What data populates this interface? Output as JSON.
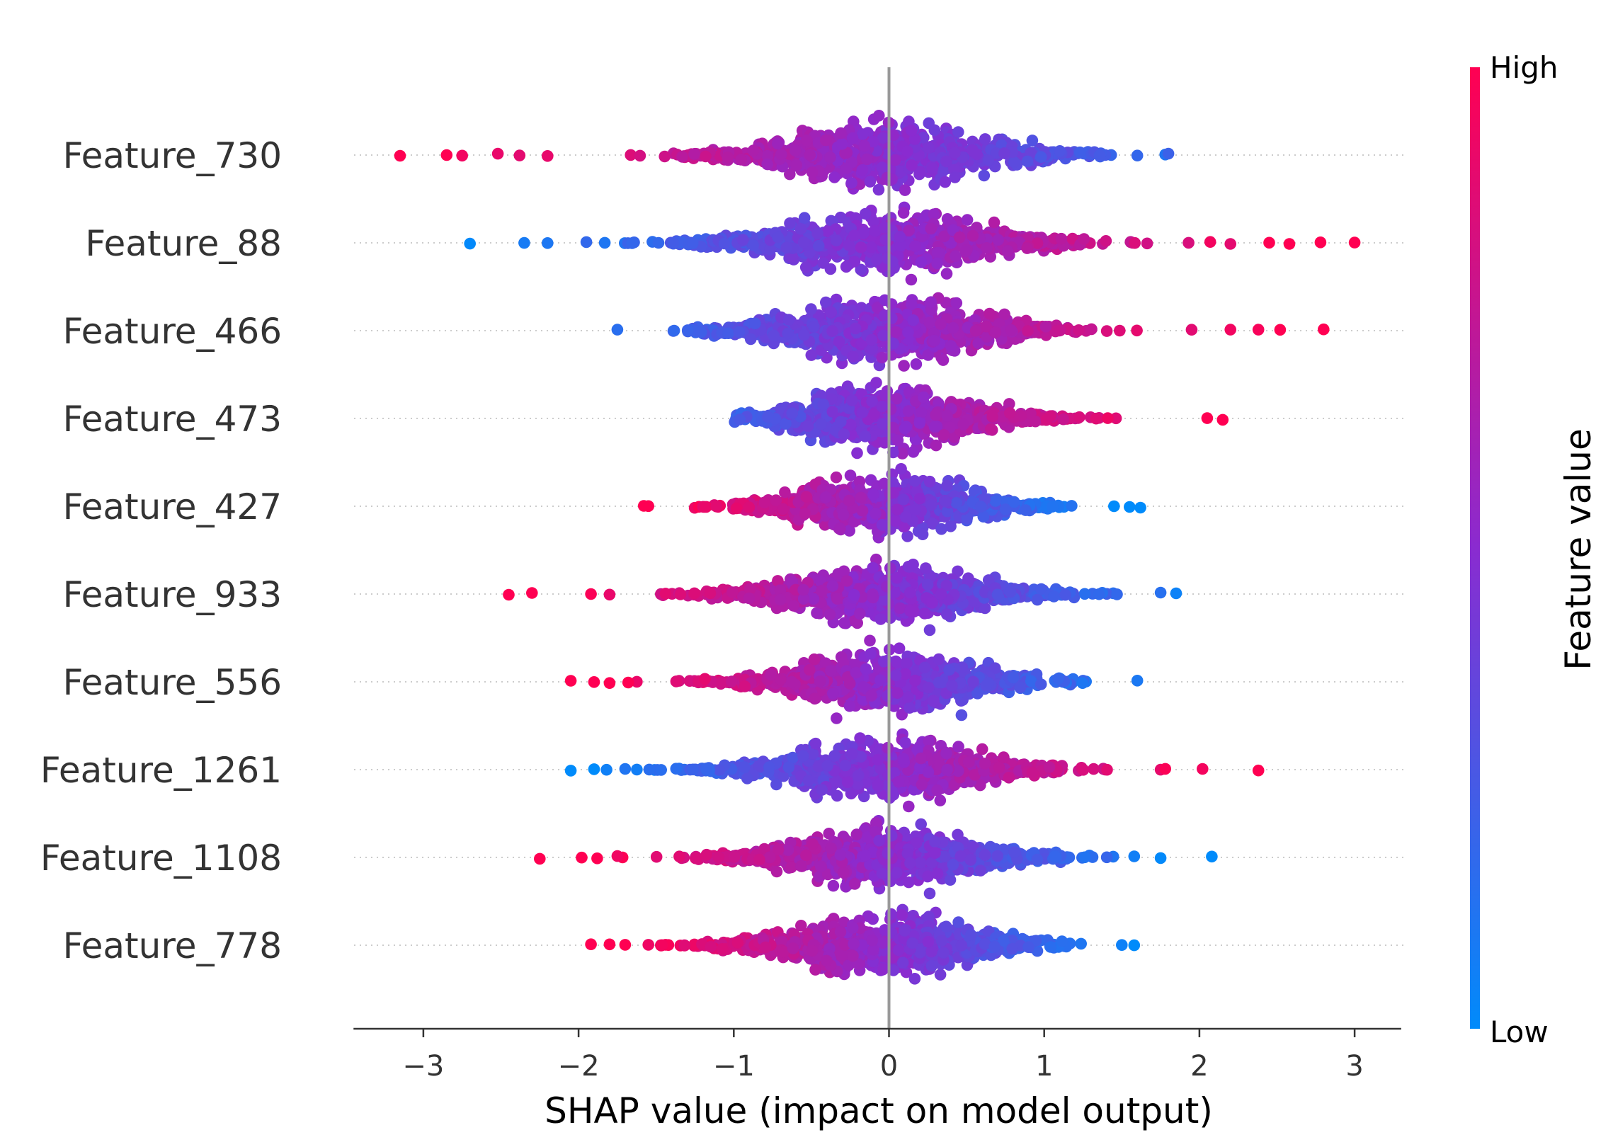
{
  "chart_data": {
    "type": "scatter",
    "subtype": "shap-beeswarm-summary",
    "xlabel": "SHAP value (impact on model output)",
    "xlim": [
      -3.45,
      3.3
    ],
    "xticks": [
      {
        "value": -3,
        "label": "−3"
      },
      {
        "value": -2,
        "label": "−2"
      },
      {
        "value": -1,
        "label": "−1"
      },
      {
        "value": 0,
        "label": "0"
      },
      {
        "value": 1,
        "label": "1"
      },
      {
        "value": 2,
        "label": "2"
      },
      {
        "value": 3,
        "label": "3"
      }
    ],
    "zero_line": 0,
    "colorbar": {
      "title": "Feature value",
      "high_label": "High",
      "low_label": "Low",
      "high_color": "#ff0052",
      "mid_color": "#8a2bd0",
      "low_color": "#008bfb"
    },
    "features": [
      {
        "name": "Feature_730",
        "min": -3.15,
        "max": 1.8,
        "spread": 0.62,
        "direction": -1,
        "outliers": [
          -3.15,
          -2.85,
          -2.75,
          -2.52,
          -2.38,
          -2.2,
          1.6,
          1.78,
          1.8
        ]
      },
      {
        "name": "Feature_88",
        "min": -2.7,
        "max": 3.0,
        "spread": 0.62,
        "direction": 1,
        "outliers": [
          -2.7,
          -2.35,
          -2.2,
          -1.95,
          1.93,
          2.07,
          2.2,
          2.45,
          2.58,
          2.78,
          3.0
        ]
      },
      {
        "name": "Feature_466",
        "min": -1.75,
        "max": 2.8,
        "spread": 0.58,
        "direction": 1,
        "outliers": [
          -1.75,
          1.95,
          2.2,
          2.38,
          2.52,
          2.8
        ]
      },
      {
        "name": "Feature_473",
        "min": -1.25,
        "max": 2.15,
        "spread": 0.52,
        "direction": 1,
        "outliers": [
          2.05,
          2.15
        ]
      },
      {
        "name": "Feature_427",
        "min": -1.58,
        "max": 1.62,
        "spread": 0.5,
        "direction": -1,
        "outliers": [
          -1.58,
          -1.55,
          1.45,
          1.55,
          1.62
        ]
      },
      {
        "name": "Feature_933",
        "min": -2.45,
        "max": 1.85,
        "spread": 0.55,
        "direction": -1,
        "outliers": [
          -2.45,
          -2.3,
          -1.92,
          -1.8,
          1.75,
          1.85
        ]
      },
      {
        "name": "Feature_556",
        "min": -2.05,
        "max": 1.6,
        "spread": 0.55,
        "direction": -1,
        "outliers": [
          -2.05,
          -1.9,
          -1.8,
          -1.68,
          1.6
        ]
      },
      {
        "name": "Feature_1261",
        "min": -2.05,
        "max": 2.38,
        "spread": 0.55,
        "direction": 1,
        "outliers": [
          -2.05,
          -1.9,
          -1.82,
          -1.7,
          1.75,
          1.78,
          2.02,
          2.38
        ]
      },
      {
        "name": "Feature_1108",
        "min": -2.25,
        "max": 2.08,
        "spread": 0.55,
        "direction": -1,
        "outliers": [
          -2.25,
          -1.98,
          -1.88,
          -1.75,
          1.58,
          1.75,
          2.08
        ]
      },
      {
        "name": "Feature_778",
        "min": -1.92,
        "max": 1.58,
        "spread": 0.55,
        "direction": -1,
        "outliers": [
          -1.92,
          -1.8,
          -1.7,
          -1.55,
          1.5,
          1.58
        ]
      }
    ]
  }
}
